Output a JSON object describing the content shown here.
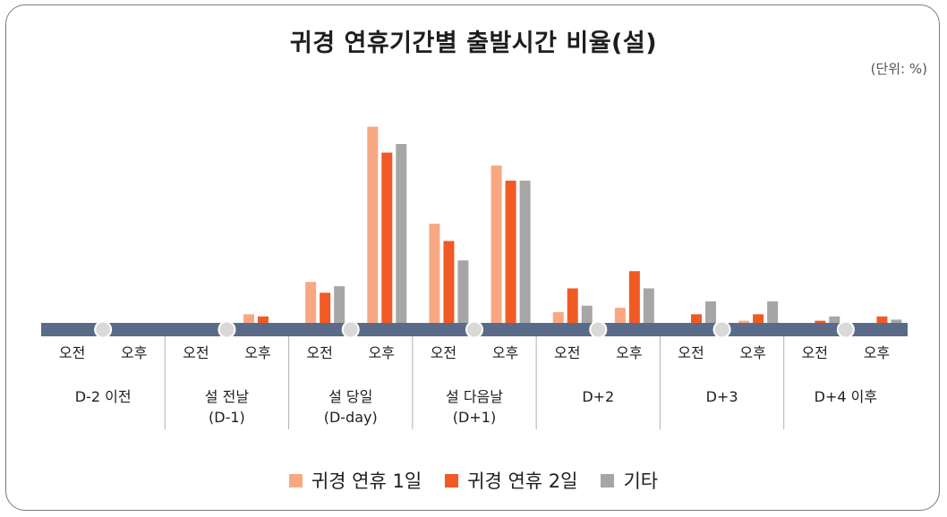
{
  "chart_data": {
    "type": "bar",
    "title": "귀경 연휴기간별 출발시간 비율(설)",
    "unit": "(단위: %)",
    "groups": [
      {
        "label": "D-2 이전",
        "sub": ""
      },
      {
        "label": "설 전날",
        "sub": "(D-1)"
      },
      {
        "label": "설 당일",
        "sub": "(D-day)"
      },
      {
        "label": "설 다음날",
        "sub": "(D+1)"
      },
      {
        "label": "D+2",
        "sub": ""
      },
      {
        "label": "D+3",
        "sub": ""
      },
      {
        "label": "D+4 이후",
        "sub": ""
      }
    ],
    "periods": [
      "오전",
      "오후"
    ],
    "series": [
      {
        "name": "귀경 연휴 1일",
        "color": "#f7a883",
        "values": [
          0,
          0,
          0,
          0.4,
          1.9,
          9.1,
          4.6,
          7.3,
          0.5,
          0.7,
          0,
          0.1,
          0,
          0
        ]
      },
      {
        "name": "귀경 연휴 2일",
        "color": "#f15a24",
        "values": [
          0,
          0,
          0,
          0.3,
          1.4,
          7.9,
          3.8,
          6.6,
          1.6,
          2.4,
          0.4,
          0.4,
          0.1,
          0.3
        ]
      },
      {
        "name": "기타",
        "color": "#a6a6a6",
        "values": [
          0,
          0,
          0,
          0,
          1.7,
          8.3,
          2.9,
          6.6,
          0.8,
          1.6,
          1.0,
          1.0,
          0.3,
          0.15
        ]
      }
    ],
    "ylim": [
      0,
      10
    ],
    "grid": false,
    "legend_position": "bottom"
  }
}
